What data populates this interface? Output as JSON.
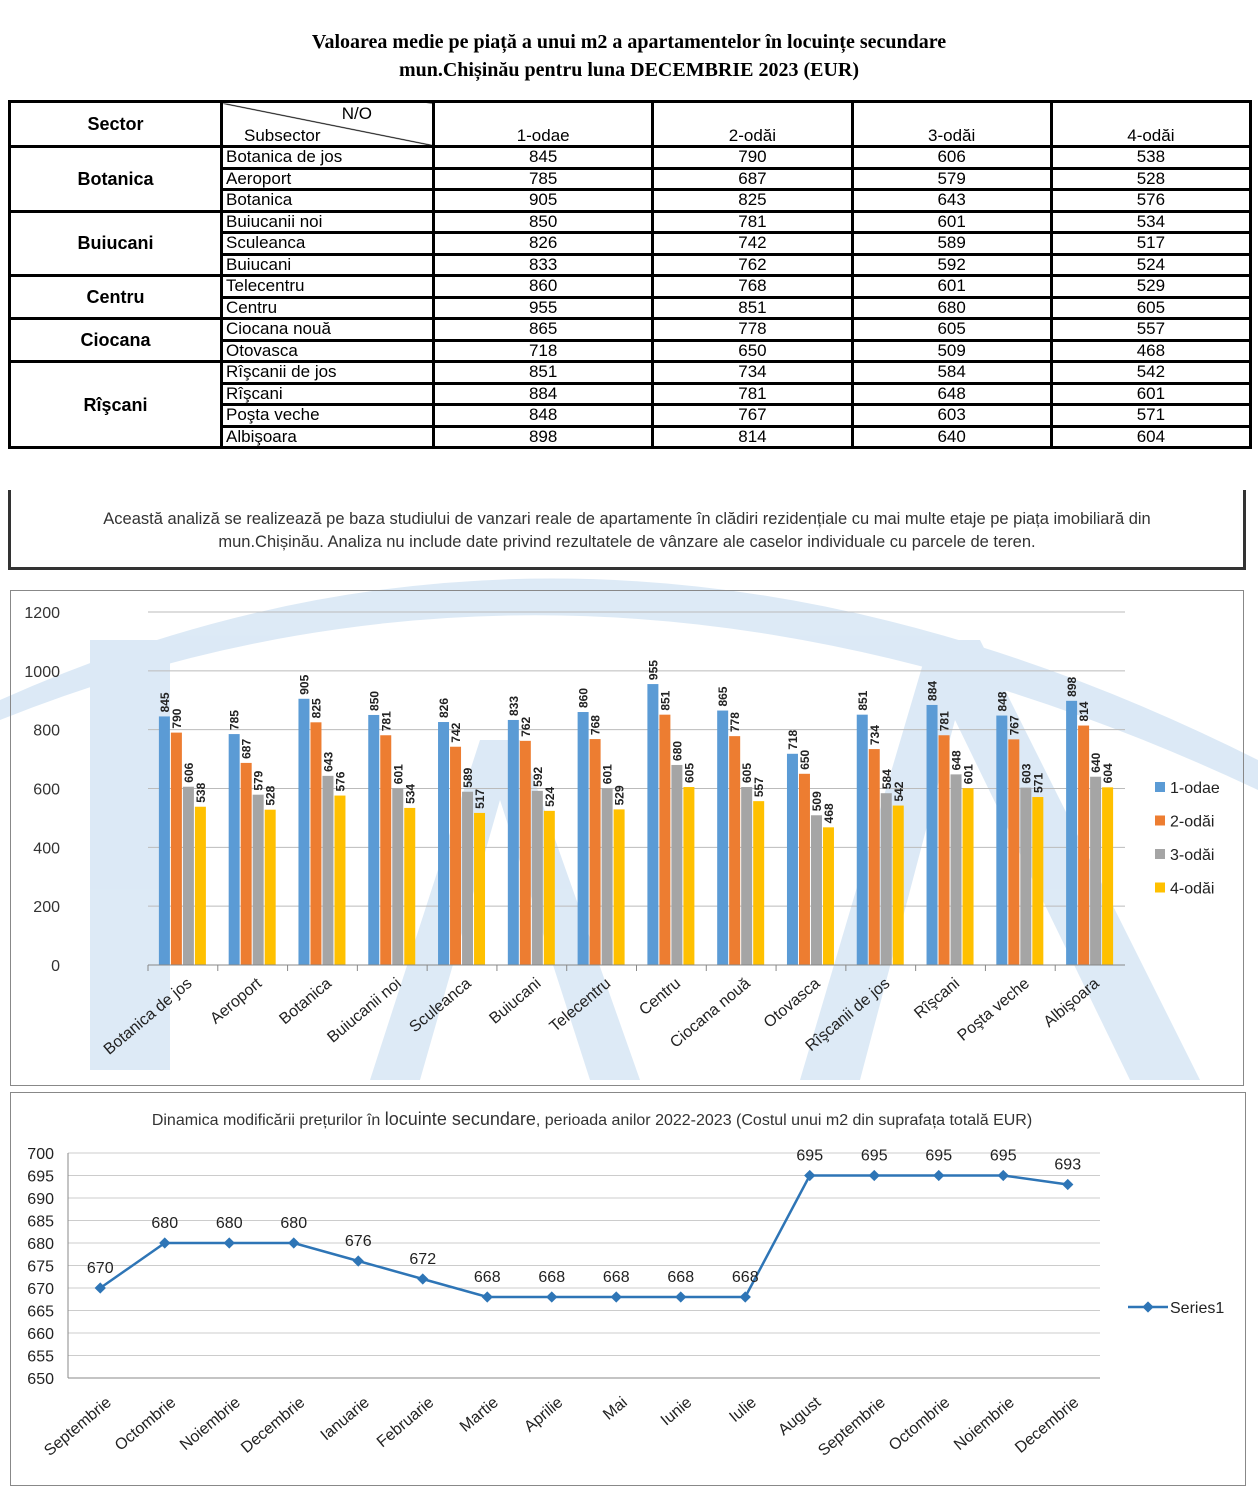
{
  "title_line1": "Valoarea medie pe piață a unui m2 a apartamentelor în locuințe secundare",
  "title_line2": "mun.Chișinău pentru luna DECEMBRIE 2023 (EUR)",
  "table": {
    "header": {
      "sector": "Sector",
      "no": "N/O",
      "subsector": "Subsector",
      "cols": [
        "1-odae",
        "2-odăi",
        "3-odăi",
        "4-odăi"
      ]
    },
    "sectors": [
      {
        "name": "Botanica",
        "rows": [
          [
            "Botanica de jos",
            845,
            790,
            606,
            538
          ],
          [
            "Aeroport",
            785,
            687,
            579,
            528
          ],
          [
            "Botanica",
            905,
            825,
            643,
            576
          ]
        ]
      },
      {
        "name": "Buiucani",
        "rows": [
          [
            "Buiucanii noi",
            850,
            781,
            601,
            534
          ],
          [
            "Sculeanca",
            826,
            742,
            589,
            517
          ],
          [
            "Buiucani",
            833,
            762,
            592,
            524
          ]
        ]
      },
      {
        "name": "Centru",
        "rows": [
          [
            "Telecentru",
            860,
            768,
            601,
            529
          ],
          [
            "Centru",
            955,
            851,
            680,
            605
          ]
        ]
      },
      {
        "name": "Ciocana",
        "rows": [
          [
            "Ciocana nouă",
            865,
            778,
            605,
            557
          ],
          [
            "Otovasca",
            718,
            650,
            509,
            468
          ]
        ]
      },
      {
        "name": "Rîşcani",
        "rows": [
          [
            "Rîşcanii de jos",
            851,
            734,
            584,
            542
          ],
          [
            "Rîşcani",
            884,
            781,
            648,
            601
          ],
          [
            "Poşta veche",
            848,
            767,
            603,
            571
          ],
          [
            "Albişoara",
            898,
            814,
            640,
            604
          ]
        ]
      }
    ],
    "note_line1": "Această analiză se realizează pe baza studiului de vanzari reale de apartamente în clădiri rezidențiale cu mai multe etaje pe piața imobiliară      din",
    "note_line2": "mun.Chișinău. Analiza nu include date privind rezultatele de vânzare ale caselor individuale cu parcele de teren."
  },
  "chart_data": [
    {
      "type": "bar",
      "title": "",
      "categories": [
        "Botanica de jos",
        "Aeroport",
        "Botanica",
        "Buiucanii noi",
        "Sculeanca",
        "Buiucani",
        "Telecentru",
        "Centru",
        "Ciocana nouă",
        "Otovasca",
        "Rîşcanii de jos",
        "Rîşcani",
        "Poşta veche",
        "Albişoara"
      ],
      "series": [
        {
          "name": "1-odae",
          "color": "#5B9BD5",
          "values": [
            845,
            785,
            905,
            850,
            826,
            833,
            860,
            955,
            865,
            718,
            851,
            884,
            848,
            898
          ]
        },
        {
          "name": "2-odăi",
          "color": "#ED7D31",
          "values": [
            790,
            687,
            825,
            781,
            742,
            762,
            768,
            851,
            778,
            650,
            734,
            781,
            767,
            814
          ]
        },
        {
          "name": "3-odăi",
          "color": "#A5A5A5",
          "values": [
            606,
            579,
            643,
            601,
            589,
            592,
            601,
            680,
            605,
            509,
            584,
            648,
            603,
            640
          ]
        },
        {
          "name": "4-odăi",
          "color": "#FFC000",
          "values": [
            538,
            528,
            576,
            534,
            517,
            524,
            529,
            605,
            557,
            468,
            542,
            601,
            571,
            604
          ]
        }
      ],
      "ylim": [
        0,
        1200
      ],
      "yticks": [
        0,
        200,
        400,
        600,
        800,
        1000,
        1200
      ],
      "grid": true,
      "legend": "right"
    },
    {
      "type": "line",
      "title_a": "Dinamica modificării prețurilor în ",
      "title_b": "locuinte secundare",
      "title_c": ", perioada anilor 2022-2023 (Costul unui m2 din suprafața totală EUR)",
      "categories": [
        "Septembrie",
        "Octombrie",
        "Noiembrie",
        "Decembrie",
        "Ianuarie",
        "Februarie",
        "Martie",
        "Aprilie",
        "Mai",
        "Iunie",
        "Iulie",
        "August",
        "Septembrie",
        "Octombrie",
        "Noiembrie",
        "Decembrie"
      ],
      "series": [
        {
          "name": "Series1",
          "color": "#2E75B6",
          "values": [
            670,
            680,
            680,
            680,
            676,
            672,
            668,
            668,
            668,
            668,
            668,
            695,
            695,
            695,
            695,
            693
          ]
        }
      ],
      "ylim": [
        650,
        700
      ],
      "yticks": [
        650,
        655,
        660,
        665,
        670,
        675,
        680,
        685,
        690,
        695,
        700
      ],
      "grid": true,
      "legend": "right"
    }
  ]
}
